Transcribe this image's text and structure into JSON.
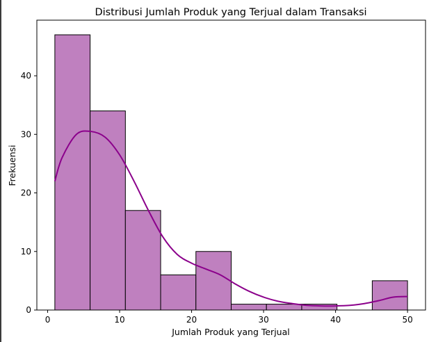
{
  "chart_data": {
    "type": "bar",
    "subtype": "histogram",
    "title": "Distribusi Jumlah Produk yang Terjual dalam Transaksi",
    "xlabel": "Jumlah Produk yang Terjual",
    "ylabel": "Frekuensi",
    "xlim": [
      -1.5,
      52.5
    ],
    "ylim": [
      0,
      49.5
    ],
    "x_ticks": [
      0,
      10,
      20,
      30,
      40,
      50
    ],
    "y_ticks": [
      0,
      10,
      20,
      30,
      40
    ],
    "grid": false,
    "bar_color": "#BF80BF",
    "edge_color": "#000000",
    "kde_color": "#8B008B",
    "bins": [
      {
        "start": 1.0,
        "end": 5.9,
        "count": 47
      },
      {
        "start": 5.9,
        "end": 10.8,
        "count": 34
      },
      {
        "start": 10.8,
        "end": 15.7,
        "count": 17
      },
      {
        "start": 15.7,
        "end": 20.6,
        "count": 6
      },
      {
        "start": 20.6,
        "end": 25.5,
        "count": 10
      },
      {
        "start": 25.5,
        "end": 30.4,
        "count": 1
      },
      {
        "start": 30.4,
        "end": 35.3,
        "count": 1
      },
      {
        "start": 35.3,
        "end": 40.2,
        "count": 1
      },
      {
        "start": 40.2,
        "end": 45.1,
        "count": 0
      },
      {
        "start": 45.1,
        "end": 50.0,
        "count": 5
      }
    ],
    "kde_curve": {
      "x": [
        1,
        2,
        4,
        6,
        8,
        10,
        12,
        14,
        16,
        18,
        20,
        22,
        24,
        26,
        28,
        30,
        32,
        34,
        36,
        38,
        40,
        42,
        44,
        46,
        48,
        50
      ],
      "y": [
        22,
        26,
        30,
        30.5,
        29.5,
        26.5,
        22,
        17,
        12.5,
        9.5,
        8,
        7,
        6,
        4.5,
        3.2,
        2.2,
        1.5,
        1.1,
        0.8,
        0.7,
        0.7,
        0.8,
        1.1,
        1.6,
        2.2,
        2.3
      ]
    }
  }
}
